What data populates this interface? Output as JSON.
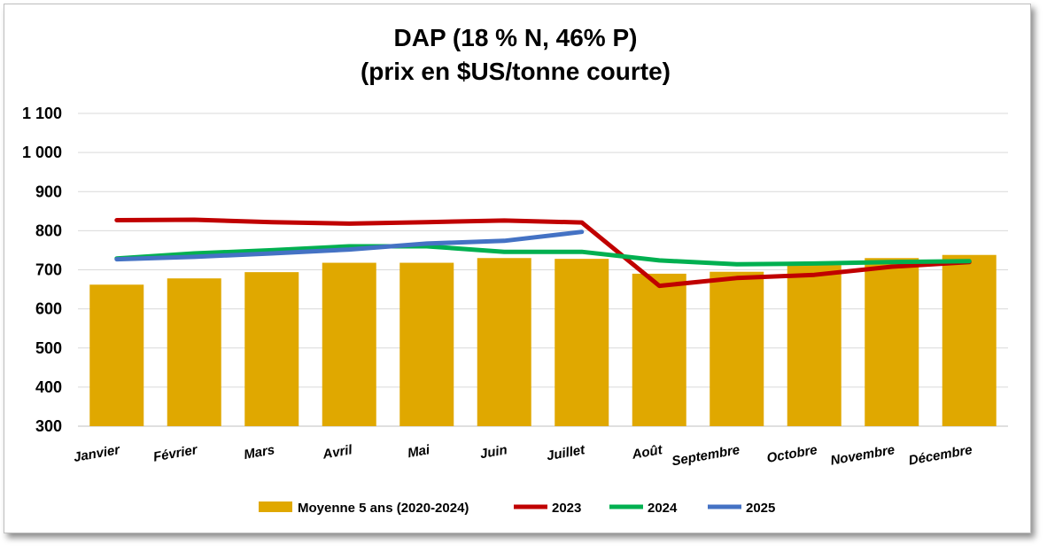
{
  "chart_data": {
    "type": "bar",
    "title": [
      "DAP (18 % N, 46% P)",
      "(prix en $US/tonne courte)"
    ],
    "categories": [
      "Janvier",
      "Février",
      "Mars",
      "Avril",
      "Mai",
      "Juin",
      "Juillet",
      "Août",
      "Septembre",
      "Octobre",
      "Novembre",
      "Décembre"
    ],
    "ylim": [
      300,
      1100
    ],
    "yticks": [
      300,
      400,
      500,
      600,
      700,
      800,
      900,
      1000,
      1100
    ],
    "ytick_labels": [
      "300",
      "400",
      "500",
      "600",
      "700",
      "800",
      "900",
      "1 000",
      "1 100"
    ],
    "grid": true,
    "legend_position": "bottom",
    "bars": {
      "name": "Moyenne 5 ans (2020-2024)",
      "color": "#E0A800",
      "values": [
        662,
        678,
        694,
        718,
        718,
        730,
        728,
        690,
        695,
        712,
        730,
        738
      ]
    },
    "series": [
      {
        "name": "2023",
        "color": "#C00000",
        "values": [
          827,
          828,
          822,
          818,
          822,
          826,
          821,
          659,
          679,
          687,
          708,
          720
        ]
      },
      {
        "name": "2024",
        "color": "#00B050",
        "values": [
          729,
          742,
          750,
          760,
          760,
          746,
          746,
          724,
          714,
          716,
          720,
          722
        ]
      },
      {
        "name": "2025",
        "color": "#4472C4",
        "values": [
          727,
          733,
          742,
          752,
          767,
          774,
          797,
          null,
          null,
          null,
          null,
          null
        ]
      }
    ]
  }
}
